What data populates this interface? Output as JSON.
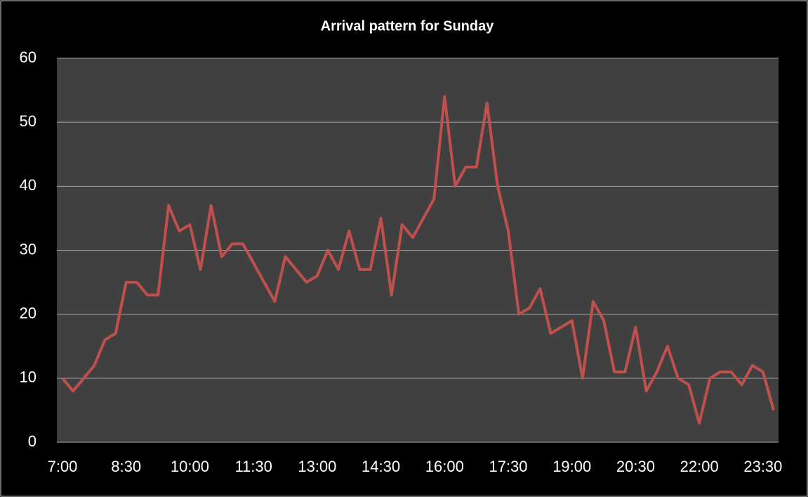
{
  "chart_data": {
    "type": "line",
    "title": "Arrival pattern for Sunday",
    "categories": [
      "7:00",
      null,
      null,
      null,
      null,
      null,
      "8:30",
      null,
      null,
      null,
      null,
      null,
      "10:00",
      null,
      null,
      null,
      null,
      null,
      "11:30",
      null,
      null,
      null,
      null,
      null,
      "13:00",
      null,
      null,
      null,
      null,
      null,
      "14:30",
      null,
      null,
      null,
      null,
      null,
      "16:00",
      null,
      null,
      null,
      null,
      null,
      "17:30",
      null,
      null,
      null,
      null,
      null,
      "19:00",
      null,
      null,
      null,
      null,
      null,
      "20:30",
      null,
      null,
      null,
      null,
      null,
      "22:00",
      null,
      null,
      null,
      null,
      null,
      "23:30",
      null
    ],
    "values": [
      10,
      8,
      10,
      12,
      16,
      17,
      25,
      25,
      23,
      23,
      37,
      33,
      34,
      27,
      37,
      29,
      31,
      31,
      28,
      25,
      22,
      29,
      27,
      25,
      26,
      30,
      27,
      33,
      27,
      27,
      35,
      23,
      34,
      32,
      35,
      38,
      54,
      40,
      43,
      43,
      53,
      40,
      33,
      20,
      21,
      24,
      17,
      18,
      19,
      10,
      22,
      19,
      11,
      11,
      18,
      8,
      11,
      15,
      10,
      9,
      3,
      10,
      11,
      11,
      9,
      12,
      11,
      5
    ],
    "color": "#c0504d",
    "ylim": [
      0,
      60
    ],
    "yticks": [
      0,
      10,
      20,
      30,
      40,
      50,
      60
    ],
    "grid": true
  }
}
